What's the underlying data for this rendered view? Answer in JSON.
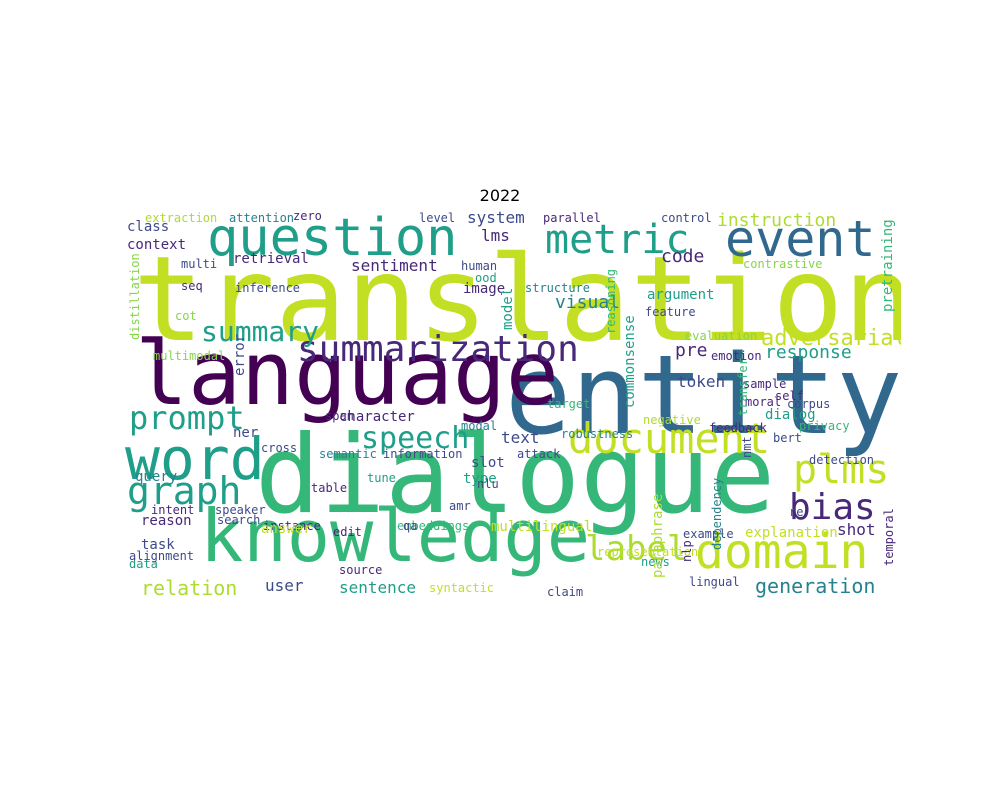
{
  "title": "2022",
  "palette": {
    "yellow_green": "#c2df23",
    "lime": "#addc30",
    "green": "#35b779",
    "teal": "#1f9e89",
    "mid_teal": "#26828e",
    "blue": "#31688e",
    "slate": "#3e4a89",
    "indigo": "#482878",
    "purple": "#440154",
    "light_green": "#86d549",
    "yellow": "#dde318"
  },
  "words": [
    "translation",
    "entity",
    "dialogue",
    "language",
    "knowledge",
    "question",
    "event",
    "word",
    "document",
    "domain",
    "summarization",
    "metric",
    "graph",
    "prompt",
    "plms",
    "summary",
    "label",
    "speech",
    "bias",
    "adversarial",
    "response",
    "relation",
    "generation",
    "instruction",
    "pretraining",
    "context",
    "class",
    "retrieval",
    "extraction",
    "attention",
    "zero",
    "level",
    "system",
    "parallel",
    "control",
    "lms",
    "sentiment",
    "distillation",
    "multi",
    "seq",
    "inference",
    "error",
    "image",
    "human",
    "ood",
    "code",
    "contrastive",
    "argument",
    "structure",
    "visual",
    "feature",
    "model",
    "reasoning",
    "commonsense",
    "pre",
    "token",
    "evaluation",
    "emotion",
    "sample",
    "dialog",
    "moral",
    "self",
    "corpus",
    "privacy",
    "transfer",
    "nmt",
    "cot",
    "multimodal",
    "ner",
    "span",
    "character",
    "text",
    "semantic",
    "information",
    "attack",
    "modal",
    "target",
    "feedback",
    "robustness",
    "bert",
    "detection",
    "query",
    "reason",
    "task",
    "data",
    "alignment",
    "intent",
    "speaker",
    "search",
    "cross",
    "table",
    "tune",
    "instance",
    "answer",
    "embeddings",
    "edit",
    "multilingual",
    "type",
    "slot",
    "nlu",
    "amr",
    "qa",
    "sentence",
    "user",
    "syntactic",
    "claim",
    "lingual",
    "news",
    "example",
    "representation",
    "explanation",
    "shot",
    "temporal",
    "paraphrase",
    "nlp",
    "dependency",
    "source",
    "negative",
    "re",
    "mt"
  ]
}
